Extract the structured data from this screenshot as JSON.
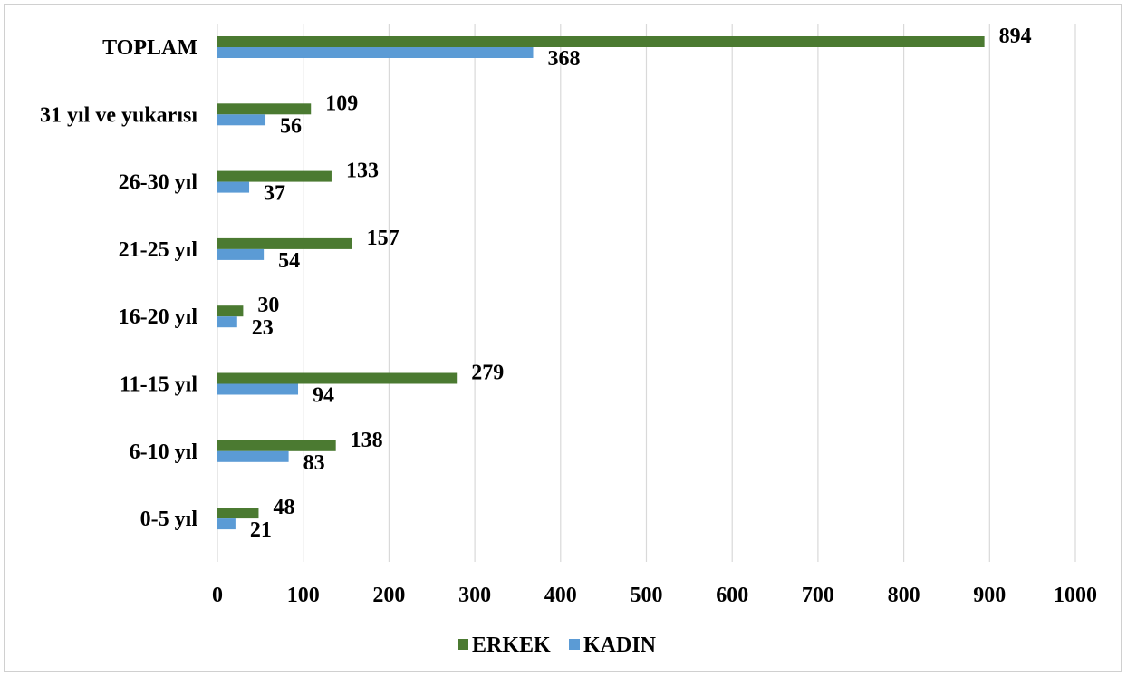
{
  "chart_data": {
    "type": "bar",
    "orientation": "horizontal",
    "title": "",
    "xlabel": "",
    "ylabel": "",
    "categories": [
      "0-5 yıl",
      "6-10 yıl",
      "11-15 yıl",
      "16-20 yıl",
      "21-25 yıl",
      "26-30 yıl",
      "31 yıl ve yukarısı",
      "TOPLAM"
    ],
    "series": [
      {
        "name": "ERKEK",
        "color": "#4b7a31",
        "values": [
          48,
          138,
          279,
          30,
          157,
          133,
          109,
          894
        ]
      },
      {
        "name": "KADIN",
        "color": "#5b9bd5",
        "values": [
          21,
          83,
          94,
          23,
          54,
          37,
          56,
          368
        ]
      }
    ],
    "xlim": [
      0,
      1000
    ],
    "xticks": [
      0,
      100,
      200,
      300,
      400,
      500,
      600,
      700,
      800,
      900,
      1000
    ],
    "grid": true,
    "legend_position": "bottom"
  }
}
